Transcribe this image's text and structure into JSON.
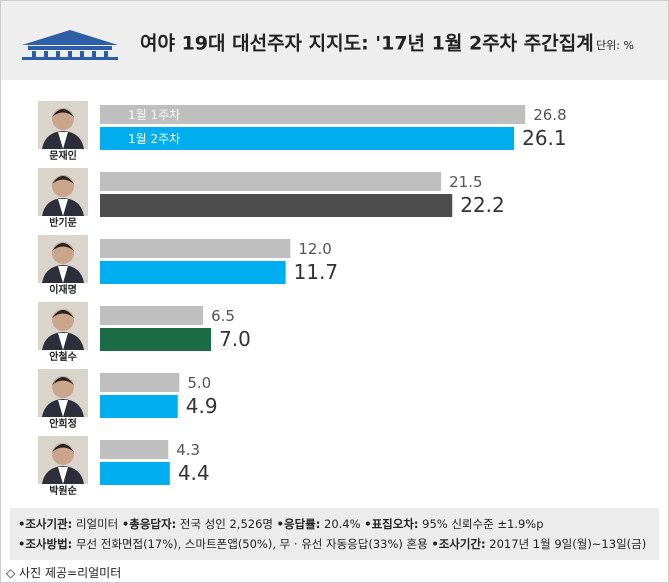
{
  "chart_data": {
    "type": "bar",
    "orientation": "horizontal",
    "title": "여야 19대 대선주자 지지도: '17년 1월 2주차 주간집계",
    "unit_label": "단위: %",
    "categories": [
      "문재인",
      "반기문",
      "이재명",
      "안철수",
      "안희정",
      "박원순"
    ],
    "series": [
      {
        "name": "1월 1주차",
        "color": "#bfbfbf",
        "values": [
          26.8,
          21.5,
          12.0,
          6.5,
          5.0,
          4.3
        ],
        "value_labels": [
          "26.8",
          "21.5",
          "12.0",
          "6.5",
          "5.0",
          "4.3"
        ]
      },
      {
        "name": "1월 2주차",
        "colors": [
          "#00aeef",
          "#4d4d4d",
          "#00aeef",
          "#1b6b46",
          "#00aeef",
          "#00aeef"
        ],
        "values": [
          26.1,
          22.2,
          11.7,
          7.0,
          4.9,
          4.4
        ],
        "value_labels": [
          "26.1",
          "22.2",
          "11.7",
          "7.0",
          "4.9",
          "4.4"
        ]
      }
    ],
    "xlim": [
      0,
      30
    ],
    "notes": [
      [
        {
          "label": "•조사기관:",
          "text": "리얼미터"
        },
        {
          "label": "•총응답자:",
          "text": "전국 성인 2,526명"
        },
        {
          "label": "•응답률:",
          "text": "20.4%"
        },
        {
          "label": "•표집오차:",
          "text": "95% 신뢰수준 ±1.9%p"
        }
      ],
      [
        {
          "label": "•조사방법:",
          "text": "무선 전화면접(17%), 스마트폰앱(50%), 무 · 유선 자동응답(33%) 혼용"
        },
        {
          "label": "•조사기간:",
          "text": "2017년 1월 9일(월)~13일(금)"
        }
      ]
    ],
    "source": "◇ 사진 제공=리얼미터"
  }
}
